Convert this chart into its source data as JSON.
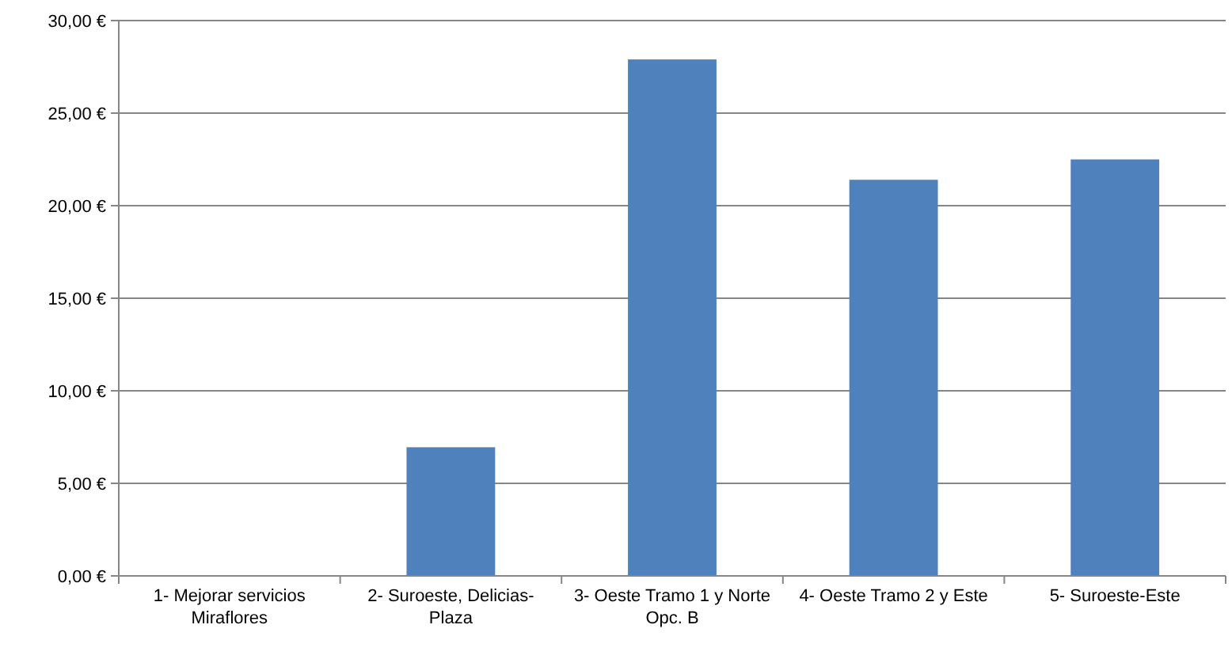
{
  "chart_data": {
    "type": "bar",
    "categories": [
      "1- Mejorar servicios Miraflores",
      "2- Suroeste, Delicias-Plaza",
      "3- Oeste Tramo 1 y Norte Opc. B",
      "4- Oeste Tramo 2 y Este",
      "5- Suroeste-Este"
    ],
    "values": [
      0,
      6.95,
      27.9,
      21.4,
      22.5
    ],
    "color": "#4f81bd",
    "ylim": [
      0,
      30
    ],
    "yticks": [
      {
        "value": 0,
        "label": "0,00 €"
      },
      {
        "value": 5,
        "label": "5,00 €"
      },
      {
        "value": 10,
        "label": "10,00 €"
      },
      {
        "value": 15,
        "label": "15,00 €"
      },
      {
        "value": 20,
        "label": "20,00 €"
      },
      {
        "value": 25,
        "label": "25,00 €"
      },
      {
        "value": 30,
        "label": "30,00 €"
      }
    ],
    "grid": "y"
  }
}
